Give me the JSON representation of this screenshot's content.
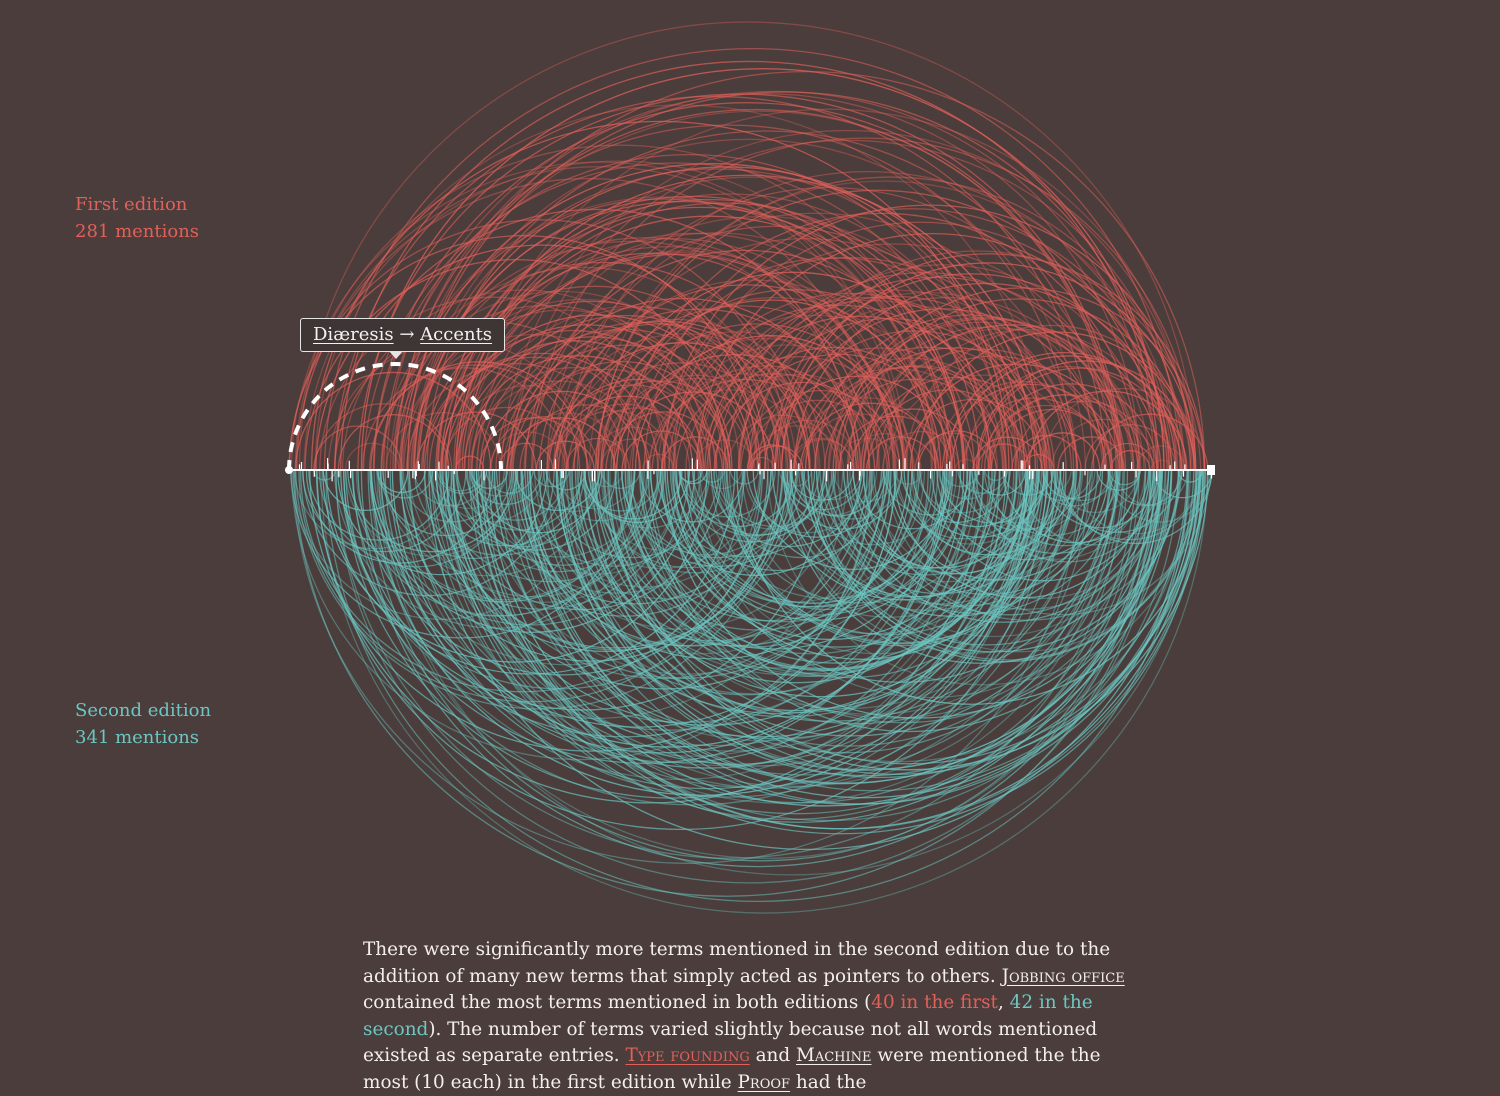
{
  "colors": {
    "background": "#4a3d3b",
    "first_edition": "#e2605a",
    "second_edition": "#6cc7c3",
    "axis": "#ffffff",
    "text": "#f3efe9"
  },
  "legend": {
    "first": {
      "label": "First edition",
      "count": "281 mentions"
    },
    "second": {
      "label": "Second edition",
      "count": "341 mentions"
    }
  },
  "tooltip": {
    "from": "Diæresis",
    "arrow": "→",
    "to": "Accents"
  },
  "chart_data": {
    "type": "arc",
    "series": [
      {
        "name": "First edition",
        "mentions": 281,
        "direction": "up"
      },
      {
        "name": "Second edition",
        "mentions": 341,
        "direction": "down"
      }
    ],
    "highlighted_link": {
      "from": "Diæresis",
      "to": "Accents"
    }
  },
  "prose": {
    "s1": "There were significantly more terms mentioned in the second edition due to the addition of many new terms that simply acted as pointers to others. ",
    "term_jobbing": "Jobbing office",
    "s2": " contained the most terms mentioned in both editions (",
    "first_count": "40 in the first",
    "comma": ", ",
    "second_count": "42 in the second",
    "s3": "). The number of terms varied slightly because not all words mentioned existed as separate entries. ",
    "term_type_founding": "Type founding",
    "s4": " and ",
    "term_machine": "Machine",
    "s5": " were mentioned the the most (10 each) in the first edition while ",
    "term_proof": "Proof",
    "s6": " had the"
  }
}
